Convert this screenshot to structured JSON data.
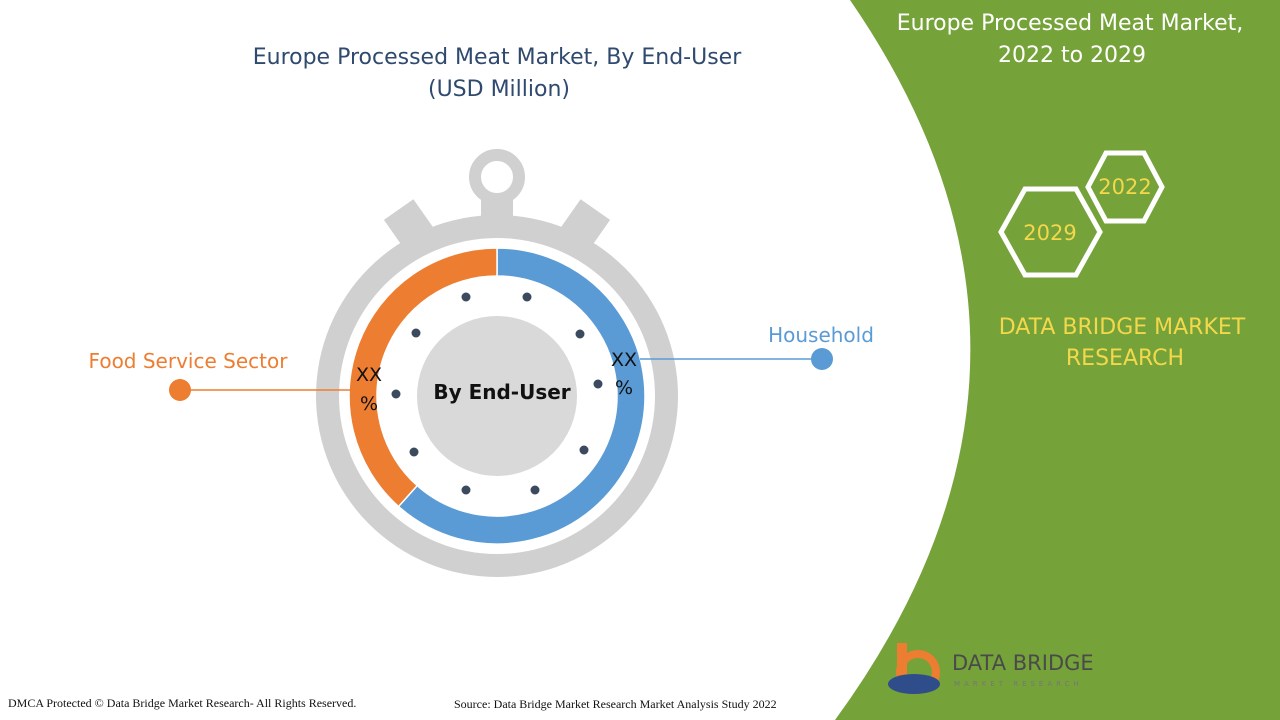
{
  "title": {
    "line1": "Europe Processed Meat Market, By End-User",
    "line2": "(USD Million)"
  },
  "center_label": "By End-User",
  "segments": [
    {
      "label": "Food Service Sector",
      "value_label": [
        "XX",
        "%"
      ]
    },
    {
      "label": "Household",
      "value_label": [
        "XX",
        "%"
      ]
    }
  ],
  "side_panel": {
    "title": [
      "Europe Processed Meat Market,",
      "2022 to 2029"
    ],
    "years": [
      "2022",
      "2029"
    ],
    "brand": [
      "DATA BRIDGE MARKET",
      "RESEARCH"
    ]
  },
  "logo": {
    "name": "DATA BRIDGE",
    "tagline": "MARKET RESEARCH"
  },
  "footer": {
    "left": "DMCA Protected © Data Bridge Market Research- All Rights Reserved.",
    "right": "Source: Data Bridge Market Research Market Analysis Study 2022"
  }
}
